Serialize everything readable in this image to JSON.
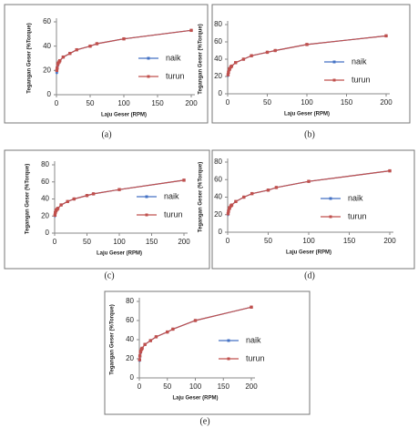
{
  "chart_data": [
    {
      "type": "line",
      "caption": "(a)",
      "ylabel": "Tegangan Geser (%Torque)",
      "xlabel": "Laju Geser (RPM)",
      "x": [
        0.5,
        1,
        2,
        2.5,
        4,
        5,
        10,
        20,
        30,
        50,
        60,
        100,
        200
      ],
      "xlim": [
        0,
        200
      ],
      "xticks": [
        0,
        50,
        100,
        150,
        200
      ],
      "ylim": [
        0,
        60
      ],
      "yticks": [
        0,
        20,
        40,
        60
      ],
      "series": [
        {
          "name": "naik",
          "color": "#4472c4",
          "values": [
            18,
            21,
            24,
            26,
            27,
            28,
            31,
            34,
            37,
            40,
            42,
            46,
            53
          ]
        },
        {
          "name": "turun",
          "color": "#c0504d",
          "values": [
            20,
            22,
            25,
            26,
            27,
            28,
            31,
            34,
            37,
            40,
            42,
            46,
            53
          ]
        }
      ]
    },
    {
      "type": "line",
      "caption": "(b)",
      "ylabel": "Tegangan Geser (%Torque)",
      "xlabel": "Laju Geser (RPM)",
      "x": [
        0.5,
        1,
        2,
        2.5,
        4,
        5,
        10,
        20,
        30,
        50,
        60,
        100,
        200
      ],
      "xlim": [
        0,
        200
      ],
      "xticks": [
        0,
        50,
        100,
        150,
        200
      ],
      "ylim": [
        0,
        80
      ],
      "yticks": [
        0,
        20,
        40,
        60,
        80
      ],
      "series": [
        {
          "name": "naik",
          "color": "#4472c4",
          "values": [
            21,
            24,
            27,
            29,
            31,
            32,
            36,
            40,
            44,
            48,
            50,
            57,
            67
          ]
        },
        {
          "name": "turun",
          "color": "#c0504d",
          "values": [
            22,
            25,
            28,
            29,
            31,
            32,
            36,
            40,
            44,
            48,
            50,
            57,
            67
          ]
        }
      ]
    },
    {
      "type": "line",
      "caption": "(c)",
      "ylabel": "Tegangan Geser (%Torque)",
      "xlabel": "Laju Geser (RPM)",
      "x": [
        0.5,
        1,
        2,
        2.5,
        4,
        5,
        10,
        20,
        30,
        50,
        60,
        100,
        200
      ],
      "xlim": [
        0,
        200
      ],
      "xticks": [
        0,
        50,
        100,
        150,
        200
      ],
      "ylim": [
        0,
        80
      ],
      "yticks": [
        0,
        20,
        40,
        60,
        80
      ],
      "series": [
        {
          "name": "naik",
          "color": "#4472c4",
          "values": [
            20,
            23,
            26,
            27,
            28,
            29,
            33,
            37,
            40,
            44,
            46,
            51,
            62
          ]
        },
        {
          "name": "turun",
          "color": "#c0504d",
          "values": [
            21,
            24,
            26,
            27,
            28,
            29,
            33,
            37,
            40,
            44,
            46,
            51,
            62
          ]
        }
      ]
    },
    {
      "type": "line",
      "caption": "(d)",
      "ylabel": "Tegangan Geser (%Torque)",
      "xlabel": "Laju Geser (RPM)",
      "x": [
        0.5,
        1,
        2,
        2.5,
        4,
        5,
        10,
        20,
        30,
        50,
        60,
        100,
        200
      ],
      "xlim": [
        0,
        200
      ],
      "xticks": [
        0,
        50,
        100,
        150,
        200
      ],
      "ylim": [
        0,
        80
      ],
      "yticks": [
        0,
        20,
        40,
        60,
        80
      ],
      "series": [
        {
          "name": "naik",
          "color": "#4472c4",
          "values": [
            20,
            23,
            27,
            28,
            30,
            31,
            35,
            40,
            44,
            48,
            51,
            58,
            70
          ]
        },
        {
          "name": "turun",
          "color": "#c0504d",
          "values": [
            21,
            24,
            27,
            28,
            30,
            31,
            35,
            40,
            44,
            48,
            51,
            58,
            70
          ]
        }
      ]
    },
    {
      "type": "line",
      "caption": "(e)",
      "ylabel": "Tegangan Geser (%Torque)",
      "xlabel": "Laju Geser (RPM)",
      "x": [
        0.5,
        1,
        2,
        2.5,
        4,
        5,
        10,
        20,
        30,
        50,
        60,
        100,
        200
      ],
      "xlim": [
        0,
        200
      ],
      "xticks": [
        0,
        50,
        100,
        150,
        200
      ],
      "ylim": [
        0,
        80
      ],
      "yticks": [
        0,
        20,
        40,
        60,
        80
      ],
      "series": [
        {
          "name": "naik",
          "color": "#4472c4",
          "values": [
            18,
            22,
            26,
            28,
            30,
            31,
            35,
            39,
            43,
            48,
            51,
            60,
            74
          ]
        },
        {
          "name": "turun",
          "color": "#c0504d",
          "values": [
            19,
            23,
            27,
            28,
            30,
            31,
            35,
            39,
            43,
            48,
            51,
            60,
            74
          ]
        }
      ]
    }
  ]
}
